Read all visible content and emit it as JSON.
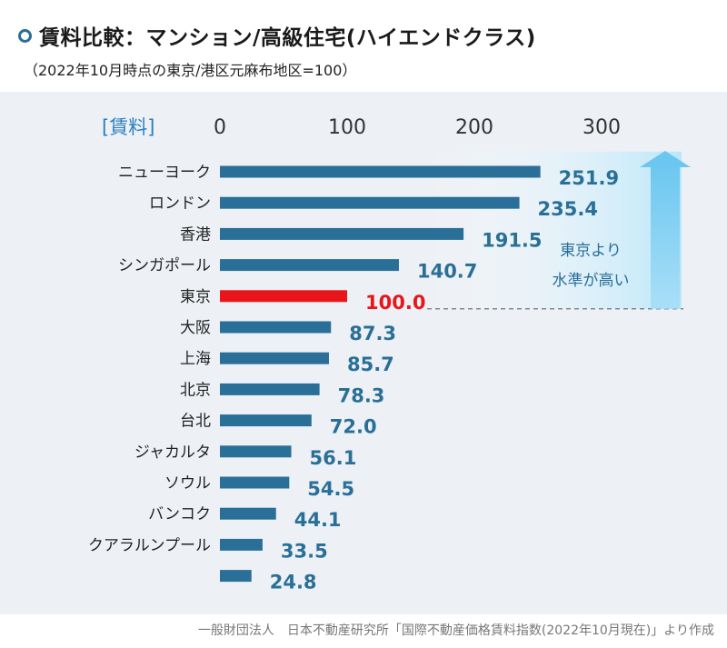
{
  "header": {
    "title": "賃料比較：マンション/高級住宅(ハイエンドクラス)",
    "subtitle": "（2022年10月時点の東京/港区元麻布地区=100）"
  },
  "footer": {
    "source": "一般財団法人　日本不動産研究所「国際不動産価格賃料指数(2022年10月現在)」より作成"
  },
  "chart_data": {
    "type": "bar",
    "orientation": "horizontal",
    "title": "賃料比較：マンション/高級住宅(ハイエンドクラス)",
    "subtitle": "（2022年10月時点の東京/港区元麻布地区=100）",
    "axis_label": "[賃料]",
    "xlim": [
      0,
      300
    ],
    "ticks": [
      "0",
      "100",
      "200",
      "300"
    ],
    "tick_values": [
      0,
      100,
      200,
      300
    ],
    "categories": [
      "ニューヨーク",
      "ロンドン",
      "香港",
      "シンガポール",
      "東京",
      "大阪",
      "上海",
      "北京",
      "台北",
      "ジャカルタ",
      "ソウル",
      "バンコク",
      "クアラルンプール",
      ""
    ],
    "values": [
      251.9,
      235.4,
      191.5,
      140.7,
      100.0,
      87.3,
      85.7,
      78.3,
      72.0,
      56.1,
      54.5,
      44.1,
      33.5,
      24.8
    ],
    "value_labels": [
      "251.9",
      "235.4",
      "191.5",
      "140.7",
      "100.0",
      "87.3",
      "85.7",
      "78.3",
      "72.0",
      "56.1",
      "54.5",
      "44.1",
      "33.5",
      "24.8"
    ],
    "highlight_category": "東京",
    "annotation": [
      "東京より",
      "水準が高い"
    ],
    "colors": {
      "bar": "#2a6f97",
      "highlight": "#e8161b",
      "value_label": "#2a6f97",
      "highlight_label": "#e8161b",
      "axis_label": "#2a7fc4",
      "arrow": "#7fcdf0"
    }
  }
}
